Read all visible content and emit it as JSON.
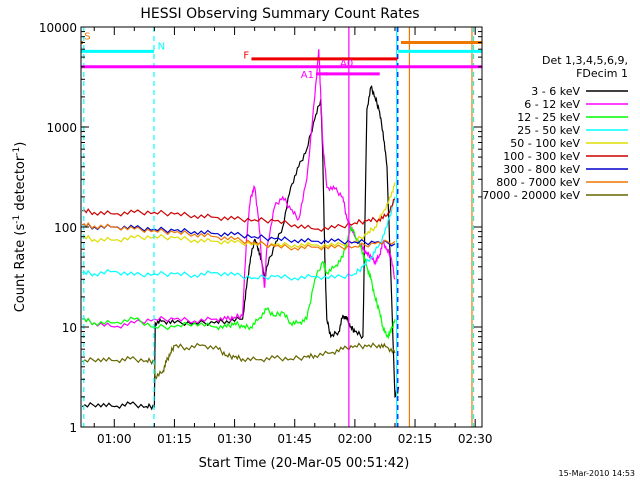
{
  "chart_data": {
    "type": "line",
    "title": "HESSI Observing Summary Count Rates",
    "xlabel": "Start Time (20-Mar-05 00:51:42)",
    "ylabel_main": "Count Rate (s",
    "ylabel_sup": "-1",
    "ylabel_mid": " detector",
    "ylabel_sup2": "-1",
    "ylabel_end": ")",
    "yscale": "log",
    "ylim": [
      1,
      10000
    ],
    "xlim_minutes": [
      51.7,
      151.7
    ],
    "x_ticks": [
      {
        "t": 60,
        "label": "01:00"
      },
      {
        "t": 75,
        "label": "01:15"
      },
      {
        "t": 90,
        "label": "01:30"
      },
      {
        "t": 105,
        "label": "01:45"
      },
      {
        "t": 120,
        "label": "02:00"
      },
      {
        "t": 135,
        "label": "02:15"
      },
      {
        "t": 150,
        "label": "02:30"
      }
    ],
    "y_ticks": [
      {
        "v": 1,
        "label": "1"
      },
      {
        "v": 10,
        "label": "10"
      },
      {
        "v": 100,
        "label": "100"
      },
      {
        "v": 1000,
        "label": "1000"
      },
      {
        "v": 10000,
        "label": "10000"
      }
    ],
    "legend_header": [
      "Det 1,3,4,5,6,9,",
      "FDecim 1"
    ],
    "legend_placement": "right",
    "series": [
      {
        "name": "3 - 6 keV",
        "color": "#000000",
        "points": [
          [
            52,
            1.6
          ],
          [
            56,
            1.7
          ],
          [
            60,
            1.6
          ],
          [
            64,
            1.7
          ],
          [
            68,
            1.6
          ],
          [
            70,
            1.6
          ],
          [
            70.2,
            11
          ],
          [
            72,
            11.5
          ],
          [
            75,
            11
          ],
          [
            80,
            11
          ],
          [
            85,
            11
          ],
          [
            88,
            11.5
          ],
          [
            92,
            12
          ],
          [
            93,
            25
          ],
          [
            94,
            50
          ],
          [
            95,
            75
          ],
          [
            96,
            60
          ],
          [
            97,
            40
          ],
          [
            97.5,
            30
          ],
          [
            98,
            40
          ],
          [
            100,
            65
          ],
          [
            102,
            100
          ],
          [
            104,
            250
          ],
          [
            106,
            400
          ],
          [
            108,
            600
          ],
          [
            110,
            1200
          ],
          [
            111.5,
            1900
          ],
          [
            112,
            500
          ],
          [
            112.5,
            50
          ],
          [
            113,
            12
          ],
          [
            114,
            8
          ],
          [
            116,
            9
          ],
          [
            117,
            13
          ],
          [
            118,
            12
          ],
          [
            119,
            10
          ],
          [
            120,
            9
          ],
          [
            122,
            8
          ],
          [
            123,
            1500
          ],
          [
            124,
            2500
          ],
          [
            125,
            2000
          ],
          [
            126,
            1500
          ],
          [
            127,
            900
          ],
          [
            128,
            400
          ],
          [
            129,
            30
          ],
          [
            130,
            2
          ],
          [
            131,
            2.5
          ]
        ]
      },
      {
        "name": "6 - 12 keV",
        "color": "#ff00ff",
        "points": [
          [
            52,
            12
          ],
          [
            55,
            11
          ],
          [
            60,
            10
          ],
          [
            65,
            11
          ],
          [
            70,
            12
          ],
          [
            75,
            12
          ],
          [
            80,
            11.5
          ],
          [
            85,
            12
          ],
          [
            88,
            12
          ],
          [
            90,
            12.5
          ],
          [
            92,
            13
          ],
          [
            93,
            80
          ],
          [
            94,
            200
          ],
          [
            95,
            250
          ],
          [
            96,
            120
          ],
          [
            97,
            35
          ],
          [
            97.5,
            25
          ],
          [
            98,
            60
          ],
          [
            100,
            160
          ],
          [
            102,
            200
          ],
          [
            104,
            150
          ],
          [
            106,
            120
          ],
          [
            108,
            300
          ],
          [
            110,
            2000
          ],
          [
            111,
            6000
          ],
          [
            111.5,
            2000
          ],
          [
            112,
            700
          ],
          [
            113,
            250
          ],
          [
            115,
            240
          ],
          [
            117,
            200
          ],
          [
            118,
            120
          ],
          [
            119,
            100
          ],
          [
            120,
            80
          ],
          [
            122,
            60
          ],
          [
            123,
            55
          ],
          [
            124,
            50
          ],
          [
            125,
            45
          ],
          [
            126,
            50
          ],
          [
            127,
            70
          ],
          [
            128,
            60
          ],
          [
            129,
            50
          ],
          [
            130,
            30
          ]
        ]
      },
      {
        "name": "12 - 25 keV",
        "color": "#00ff00",
        "points": [
          [
            52,
            12
          ],
          [
            55,
            11
          ],
          [
            60,
            11
          ],
          [
            65,
            12
          ],
          [
            70,
            10
          ],
          [
            75,
            10
          ],
          [
            80,
            11
          ],
          [
            85,
            10
          ],
          [
            88,
            10
          ],
          [
            90,
            11
          ],
          [
            92,
            10
          ],
          [
            94,
            10
          ],
          [
            96,
            12
          ],
          [
            98,
            15
          ],
          [
            100,
            13
          ],
          [
            102,
            14
          ],
          [
            104,
            11
          ],
          [
            106,
            11
          ],
          [
            108,
            12
          ],
          [
            110,
            30
          ],
          [
            112,
            45
          ],
          [
            113,
            35
          ],
          [
            115,
            40
          ],
          [
            117,
            50
          ],
          [
            119,
            100
          ],
          [
            121,
            70
          ],
          [
            122,
            55
          ],
          [
            123,
            40
          ],
          [
            124,
            30
          ],
          [
            125,
            20
          ],
          [
            126,
            15
          ],
          [
            127,
            10
          ],
          [
            128,
            8
          ],
          [
            129,
            9
          ],
          [
            130,
            12
          ]
        ]
      },
      {
        "name": "25 - 50 keV",
        "color": "#00ffff",
        "points": [
          [
            52,
            35
          ],
          [
            55,
            34
          ],
          [
            60,
            36
          ],
          [
            65,
            33
          ],
          [
            70,
            34
          ],
          [
            75,
            34
          ],
          [
            80,
            33
          ],
          [
            85,
            35
          ],
          [
            90,
            33
          ],
          [
            95,
            31
          ],
          [
            100,
            32
          ],
          [
            105,
            31
          ],
          [
            110,
            32
          ],
          [
            115,
            31
          ],
          [
            120,
            34
          ],
          [
            122,
            40
          ],
          [
            124,
            50
          ],
          [
            126,
            65
          ],
          [
            128,
            100
          ],
          [
            130,
            200
          ]
        ]
      },
      {
        "name": "50 - 100 keV",
        "color": "#dddd00",
        "points": [
          [
            52,
            80
          ],
          [
            55,
            75
          ],
          [
            60,
            74
          ],
          [
            65,
            78
          ],
          [
            70,
            80
          ],
          [
            75,
            78
          ],
          [
            80,
            74
          ],
          [
            85,
            72
          ],
          [
            90,
            70
          ],
          [
            95,
            68
          ],
          [
            100,
            66
          ],
          [
            105,
            66
          ],
          [
            110,
            66
          ],
          [
            115,
            65
          ],
          [
            120,
            72
          ],
          [
            123,
            85
          ],
          [
            125,
            100
          ],
          [
            127,
            140
          ],
          [
            129,
            200
          ],
          [
            130,
            280
          ]
        ]
      },
      {
        "name": "100 - 300 keV",
        "color": "#cc0000",
        "points": [
          [
            52,
            145
          ],
          [
            55,
            140
          ],
          [
            60,
            135
          ],
          [
            65,
            140
          ],
          [
            70,
            140
          ],
          [
            75,
            135
          ],
          [
            80,
            130
          ],
          [
            85,
            125
          ],
          [
            90,
            120
          ],
          [
            95,
            118
          ],
          [
            100,
            115
          ],
          [
            105,
            105
          ],
          [
            110,
            95
          ],
          [
            115,
            98
          ],
          [
            120,
            110
          ],
          [
            123,
            115
          ],
          [
            126,
            120
          ],
          [
            128,
            130
          ],
          [
            130,
            190
          ]
        ]
      },
      {
        "name": "300 - 800 keV",
        "color": "#0000cc",
        "points": [
          [
            52,
            105
          ],
          [
            55,
            100
          ],
          [
            60,
            100
          ],
          [
            65,
            98
          ],
          [
            70,
            95
          ],
          [
            75,
            92
          ],
          [
            80,
            90
          ],
          [
            85,
            86
          ],
          [
            90,
            84
          ],
          [
            95,
            80
          ],
          [
            100,
            76
          ],
          [
            105,
            74
          ],
          [
            110,
            72
          ],
          [
            115,
            72
          ],
          [
            120,
            71
          ],
          [
            125,
            70
          ],
          [
            130,
            68
          ]
        ]
      },
      {
        "name": "800 - 7000 keV",
        "color": "#ee7700",
        "points": [
          [
            52,
            105
          ],
          [
            55,
            102
          ],
          [
            60,
            100
          ],
          [
            65,
            95
          ],
          [
            70,
            92
          ],
          [
            75,
            88
          ],
          [
            80,
            85
          ],
          [
            85,
            80
          ],
          [
            90,
            75
          ],
          [
            95,
            70
          ],
          [
            100,
            64
          ],
          [
            105,
            62
          ],
          [
            110,
            63
          ],
          [
            115,
            62
          ],
          [
            120,
            64
          ],
          [
            125,
            68
          ],
          [
            130,
            72
          ]
        ]
      },
      {
        "name": "7000 - 20000 keV",
        "color": "#666600",
        "points": [
          [
            52,
            4.5
          ],
          [
            56,
            4.8
          ],
          [
            60,
            4.6
          ],
          [
            64,
            4.8
          ],
          [
            68,
            4.6
          ],
          [
            70,
            4.5
          ],
          [
            70.2,
            3.2
          ],
          [
            72,
            3.5
          ],
          [
            73,
            4.5
          ],
          [
            74,
            5.5
          ],
          [
            75,
            6.5
          ],
          [
            78,
            6.2
          ],
          [
            82,
            6.6
          ],
          [
            86,
            6.0
          ],
          [
            88,
            5.2
          ],
          [
            90,
            5.0
          ],
          [
            92,
            4.8
          ],
          [
            96,
            4.7
          ],
          [
            100,
            4.9
          ],
          [
            104,
            4.8
          ],
          [
            108,
            5.0
          ],
          [
            110,
            5.2
          ],
          [
            114,
            5.5
          ],
          [
            117,
            6.0
          ],
          [
            120,
            6.5
          ],
          [
            123,
            6.4
          ],
          [
            126,
            6.6
          ],
          [
            128,
            6.3
          ],
          [
            130,
            5.5
          ]
        ]
      }
    ],
    "flags": [
      {
        "label": "S",
        "color": "#ee7700",
        "segments": [
          [
            51.7,
            52.2
          ],
          [
            131.5,
            151.7
          ]
        ],
        "level": 7000,
        "label_t": 52.5,
        "label_level": 8200
      },
      {
        "label": "N",
        "color": "#00ffff",
        "segments": [
          [
            51.7,
            69.9
          ],
          [
            130.8,
            151.7
          ]
        ],
        "level": 5700,
        "label_t": 70.8,
        "label_level": 6500
      },
      {
        "label": "F",
        "color": "#ee0000",
        "segments": [
          [
            94.2,
            130.6
          ]
        ],
        "level": 4800,
        "label_t": 92.2,
        "label_level": 5300
      },
      {
        "label": "",
        "color": "#ff00ff",
        "segments": [
          [
            51.7,
            151.7
          ]
        ],
        "level": 4000,
        "label_t": 0,
        "label_level": 0
      },
      {
        "label": "A1",
        "color": "#ff00ff",
        "segments": [
          [
            110.3,
            113.3
          ]
        ],
        "level": 3400,
        "label_t": 106.5,
        "label_level": 3400
      },
      {
        "label": "A0",
        "color": "#ff00ff",
        "segments": [
          [
            112.5,
            126.2
          ]
        ],
        "level": 3400,
        "label_t": 116.3,
        "label_level": 4400
      }
    ],
    "vlines": [
      {
        "t": 52.4,
        "color": "#00ffff",
        "dashed": true
      },
      {
        "t": 69.9,
        "color": "#00ffff",
        "dashed": true
      },
      {
        "t": 118.5,
        "color": "#ff00ff",
        "dashed": false,
        "top": 10000
      },
      {
        "t": 130.4,
        "color": "#00ffff",
        "dashed": false
      },
      {
        "t": 130.7,
        "color": "#0000ff",
        "dashed": true
      },
      {
        "t": 133.6,
        "color": "#ee7700",
        "dashed": false
      },
      {
        "t": 149.2,
        "color": "#ee7700",
        "dashed": false
      },
      {
        "t": 149.6,
        "color": "#00ffff",
        "dashed": true
      }
    ],
    "footer_date": "15-Mar-2010 14:53"
  }
}
